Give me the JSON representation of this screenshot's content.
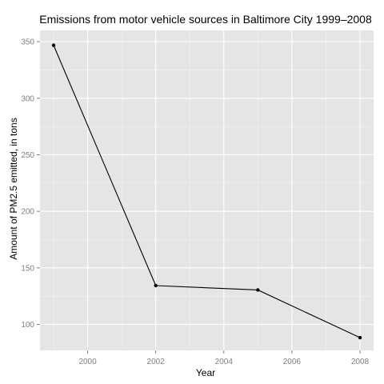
{
  "chart_data": {
    "type": "line",
    "title": "Emissions from motor vehicle sources in Baltimore City 1999–2008",
    "xlabel": "Year",
    "ylabel": "Amount of PM2.5 emitted, in tons",
    "x": [
      1999,
      2002,
      2005,
      2008
    ],
    "series": [
      {
        "values": [
          346.82,
          134.31,
          130.43,
          88.28
        ]
      }
    ],
    "xlim": [
      1998.6,
      2008.4
    ],
    "ylim": [
      77,
      360
    ],
    "xticks": [
      "2000",
      "2002",
      "2004",
      "2006",
      "2008"
    ],
    "yticks": [
      "100",
      "150",
      "200",
      "250",
      "300",
      "350"
    ],
    "grid": true,
    "legend": "none",
    "colors": {
      "panel": "#e5e5e5",
      "grid_major": "#ffffff",
      "grid_minor": "#f2f2f2",
      "line": "#000000",
      "tick_text": "#7f7f7f",
      "text": "#000000"
    }
  }
}
